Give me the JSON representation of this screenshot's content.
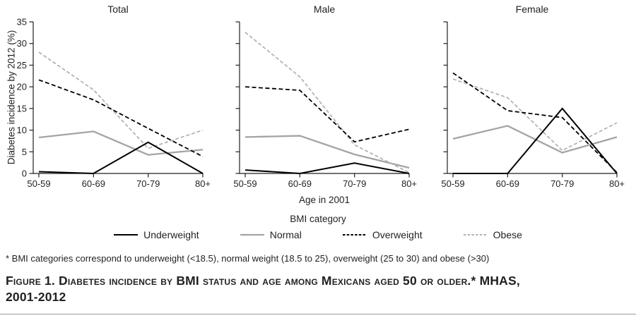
{
  "figure": {
    "y_axis_label": "Diabetes incidence by 2012 (%)",
    "x_axis_label": "Age in 2001",
    "legend_title": "BMI category",
    "footnote": "* BMI categories correspond to underweight (<18.5), normal weight (18.5 to 25), overweight (25 to 30) and obese (>30)",
    "caption_line1": "Figure 1. Diabetes incidence by BMI status and age among Mexicans aged 50 or older.* MHAS,",
    "caption_line2": "2001-2012",
    "text_color": "#231f20"
  },
  "chart_data": {
    "type": "line",
    "categories": [
      "50-59",
      "60-69",
      "70-79",
      "80+"
    ],
    "xlabel": "Age in 2001",
    "ylabel": "Diabetes incidence by 2012 (%)",
    "ylim": [
      0,
      35
    ],
    "y_ticks": [
      0,
      5,
      10,
      15,
      20,
      25,
      30,
      35
    ],
    "grid": false,
    "legend_position": "bottom",
    "legend_title": "BMI category",
    "series_styles": [
      {
        "name": "Underweight",
        "color": "#000000",
        "dash": "",
        "width": 2
      },
      {
        "name": "Normal",
        "color": "#a2a4a7",
        "dash": "",
        "width": 2.3
      },
      {
        "name": "Overweight",
        "color": "#000000",
        "dash": "6,3.5",
        "width": 1.8
      },
      {
        "name": "Obese",
        "color": "#b1b3b6",
        "dash": "5,3",
        "width": 1.8
      }
    ],
    "panels": [
      {
        "title": "Total",
        "series": [
          {
            "name": "Underweight",
            "values": [
              0.4,
              0,
              7.2,
              0
            ]
          },
          {
            "name": "Normal",
            "values": [
              8.3,
              9.7,
              4.3,
              5.5
            ]
          },
          {
            "name": "Overweight",
            "values": [
              21.6,
              17,
              10.4,
              3.9
            ]
          },
          {
            "name": "Obese",
            "values": [
              28,
              19.3,
              5.8,
              10
            ]
          }
        ]
      },
      {
        "title": "Male",
        "series": [
          {
            "name": "Underweight",
            "values": [
              0.8,
              0,
              2.4,
              0
            ]
          },
          {
            "name": "Normal",
            "values": [
              8.4,
              8.7,
              4.4,
              1.3
            ]
          },
          {
            "name": "Overweight",
            "values": [
              20,
              19.2,
              7.3,
              10.2
            ]
          },
          {
            "name": "Obese",
            "values": [
              32.6,
              22.3,
              6.6,
              0.2
            ]
          }
        ]
      },
      {
        "title": "Female",
        "series": [
          {
            "name": "Underweight",
            "values": [
              0,
              0,
              15,
              0
            ]
          },
          {
            "name": "Normal",
            "values": [
              8,
              11,
              4.8,
              8.4
            ]
          },
          {
            "name": "Overweight",
            "values": [
              23.2,
              14.5,
              12.9,
              0.2
            ]
          },
          {
            "name": "Obese",
            "values": [
              21.8,
              17.5,
              5.3,
              11.7
            ]
          }
        ]
      }
    ]
  }
}
